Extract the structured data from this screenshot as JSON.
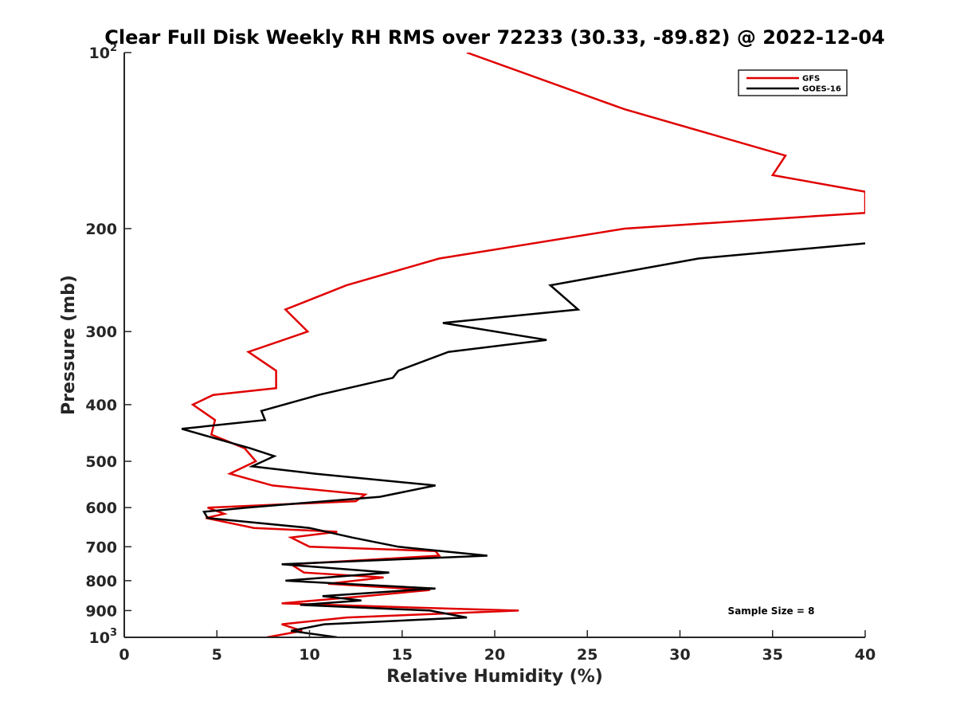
{
  "chart_data": {
    "type": "line",
    "title": "Clear Full Disk Weekly RH RMS over 72233 (30.33, -89.82) @ 2022-12-04",
    "xlabel": "Relative Humidity (%)",
    "ylabel": "Pressure (mb)",
    "xlim": [
      0,
      40
    ],
    "ylim": [
      100,
      1000
    ],
    "yscale": "log",
    "y_reversed": true,
    "grid": false,
    "x_ticks": [
      0,
      5,
      10,
      15,
      20,
      25,
      30,
      35,
      40
    ],
    "y_ticks": [
      {
        "value": 100,
        "base": "10",
        "exp": "2"
      },
      {
        "value": 200,
        "label": "200"
      },
      {
        "value": 300,
        "label": "300"
      },
      {
        "value": 400,
        "label": "400"
      },
      {
        "value": 500,
        "label": "500"
      },
      {
        "value": 600,
        "label": "600"
      },
      {
        "value": 700,
        "label": "700"
      },
      {
        "value": 800,
        "label": "800"
      },
      {
        "value": 900,
        "label": "900"
      },
      {
        "value": 1000,
        "base": "10",
        "exp": "3"
      }
    ],
    "legend": {
      "position": "top-right"
    },
    "annotation": "Sample Size = 8",
    "series": [
      {
        "name": "GFS",
        "color": "#e00000",
        "points": [
          [
            18.5,
            100
          ],
          [
            27.0,
            125
          ],
          [
            35.7,
            150
          ],
          [
            35.0,
            162
          ],
          [
            40.0,
            173
          ],
          [
            40.0,
            188
          ],
          [
            27.0,
            200
          ],
          [
            17.0,
            225
          ],
          [
            12.0,
            250
          ],
          [
            8.7,
            275
          ],
          [
            9.9,
            300
          ],
          [
            6.7,
            325
          ],
          [
            8.2,
            350
          ],
          [
            8.2,
            375
          ],
          [
            4.8,
            385
          ],
          [
            3.7,
            400
          ],
          [
            4.9,
            425
          ],
          [
            4.7,
            450
          ],
          [
            6.5,
            475
          ],
          [
            7.1,
            500
          ],
          [
            5.7,
            525
          ],
          [
            8.0,
            550
          ],
          [
            13.0,
            570
          ],
          [
            12.5,
            585
          ],
          [
            4.5,
            600
          ],
          [
            5.4,
            615
          ],
          [
            4.4,
            625
          ],
          [
            7.0,
            650
          ],
          [
            11.5,
            660
          ],
          [
            9.0,
            675
          ],
          [
            10.0,
            700
          ],
          [
            16.8,
            712
          ],
          [
            17.0,
            725
          ],
          [
            9.0,
            750
          ],
          [
            9.7,
            775
          ],
          [
            14.0,
            790
          ],
          [
            11.0,
            810
          ],
          [
            16.5,
            830
          ],
          [
            13.0,
            850
          ],
          [
            8.5,
            875
          ],
          [
            16.0,
            890
          ],
          [
            21.3,
            900
          ],
          [
            12.0,
            925
          ],
          [
            8.5,
            950
          ],
          [
            9.6,
            975
          ],
          [
            7.7,
            1000
          ]
        ]
      },
      {
        "name": "GOES-16",
        "color": "#000000",
        "points": [
          [
            40.0,
            212
          ],
          [
            31.0,
            225
          ],
          [
            23.0,
            250
          ],
          [
            24.5,
            275
          ],
          [
            17.2,
            290
          ],
          [
            22.8,
            310
          ],
          [
            17.5,
            325
          ],
          [
            14.8,
            350
          ],
          [
            14.5,
            360
          ],
          [
            10.5,
            385
          ],
          [
            7.4,
            410
          ],
          [
            7.6,
            425
          ],
          [
            3.1,
            440
          ],
          [
            6.8,
            475
          ],
          [
            8.1,
            490
          ],
          [
            6.9,
            510
          ],
          [
            10.3,
            525
          ],
          [
            16.8,
            550
          ],
          [
            13.8,
            575
          ],
          [
            6.6,
            600
          ],
          [
            4.3,
            610
          ],
          [
            4.5,
            625
          ],
          [
            10.0,
            650
          ],
          [
            12.3,
            675
          ],
          [
            14.8,
            700
          ],
          [
            19.6,
            725
          ],
          [
            8.5,
            750
          ],
          [
            14.3,
            775
          ],
          [
            8.7,
            800
          ],
          [
            16.8,
            825
          ],
          [
            10.7,
            850
          ],
          [
            12.8,
            865
          ],
          [
            9.5,
            880
          ],
          [
            16.5,
            900
          ],
          [
            18.5,
            925
          ],
          [
            10.8,
            950
          ],
          [
            9.0,
            975
          ],
          [
            11.5,
            1000
          ]
        ]
      }
    ]
  }
}
